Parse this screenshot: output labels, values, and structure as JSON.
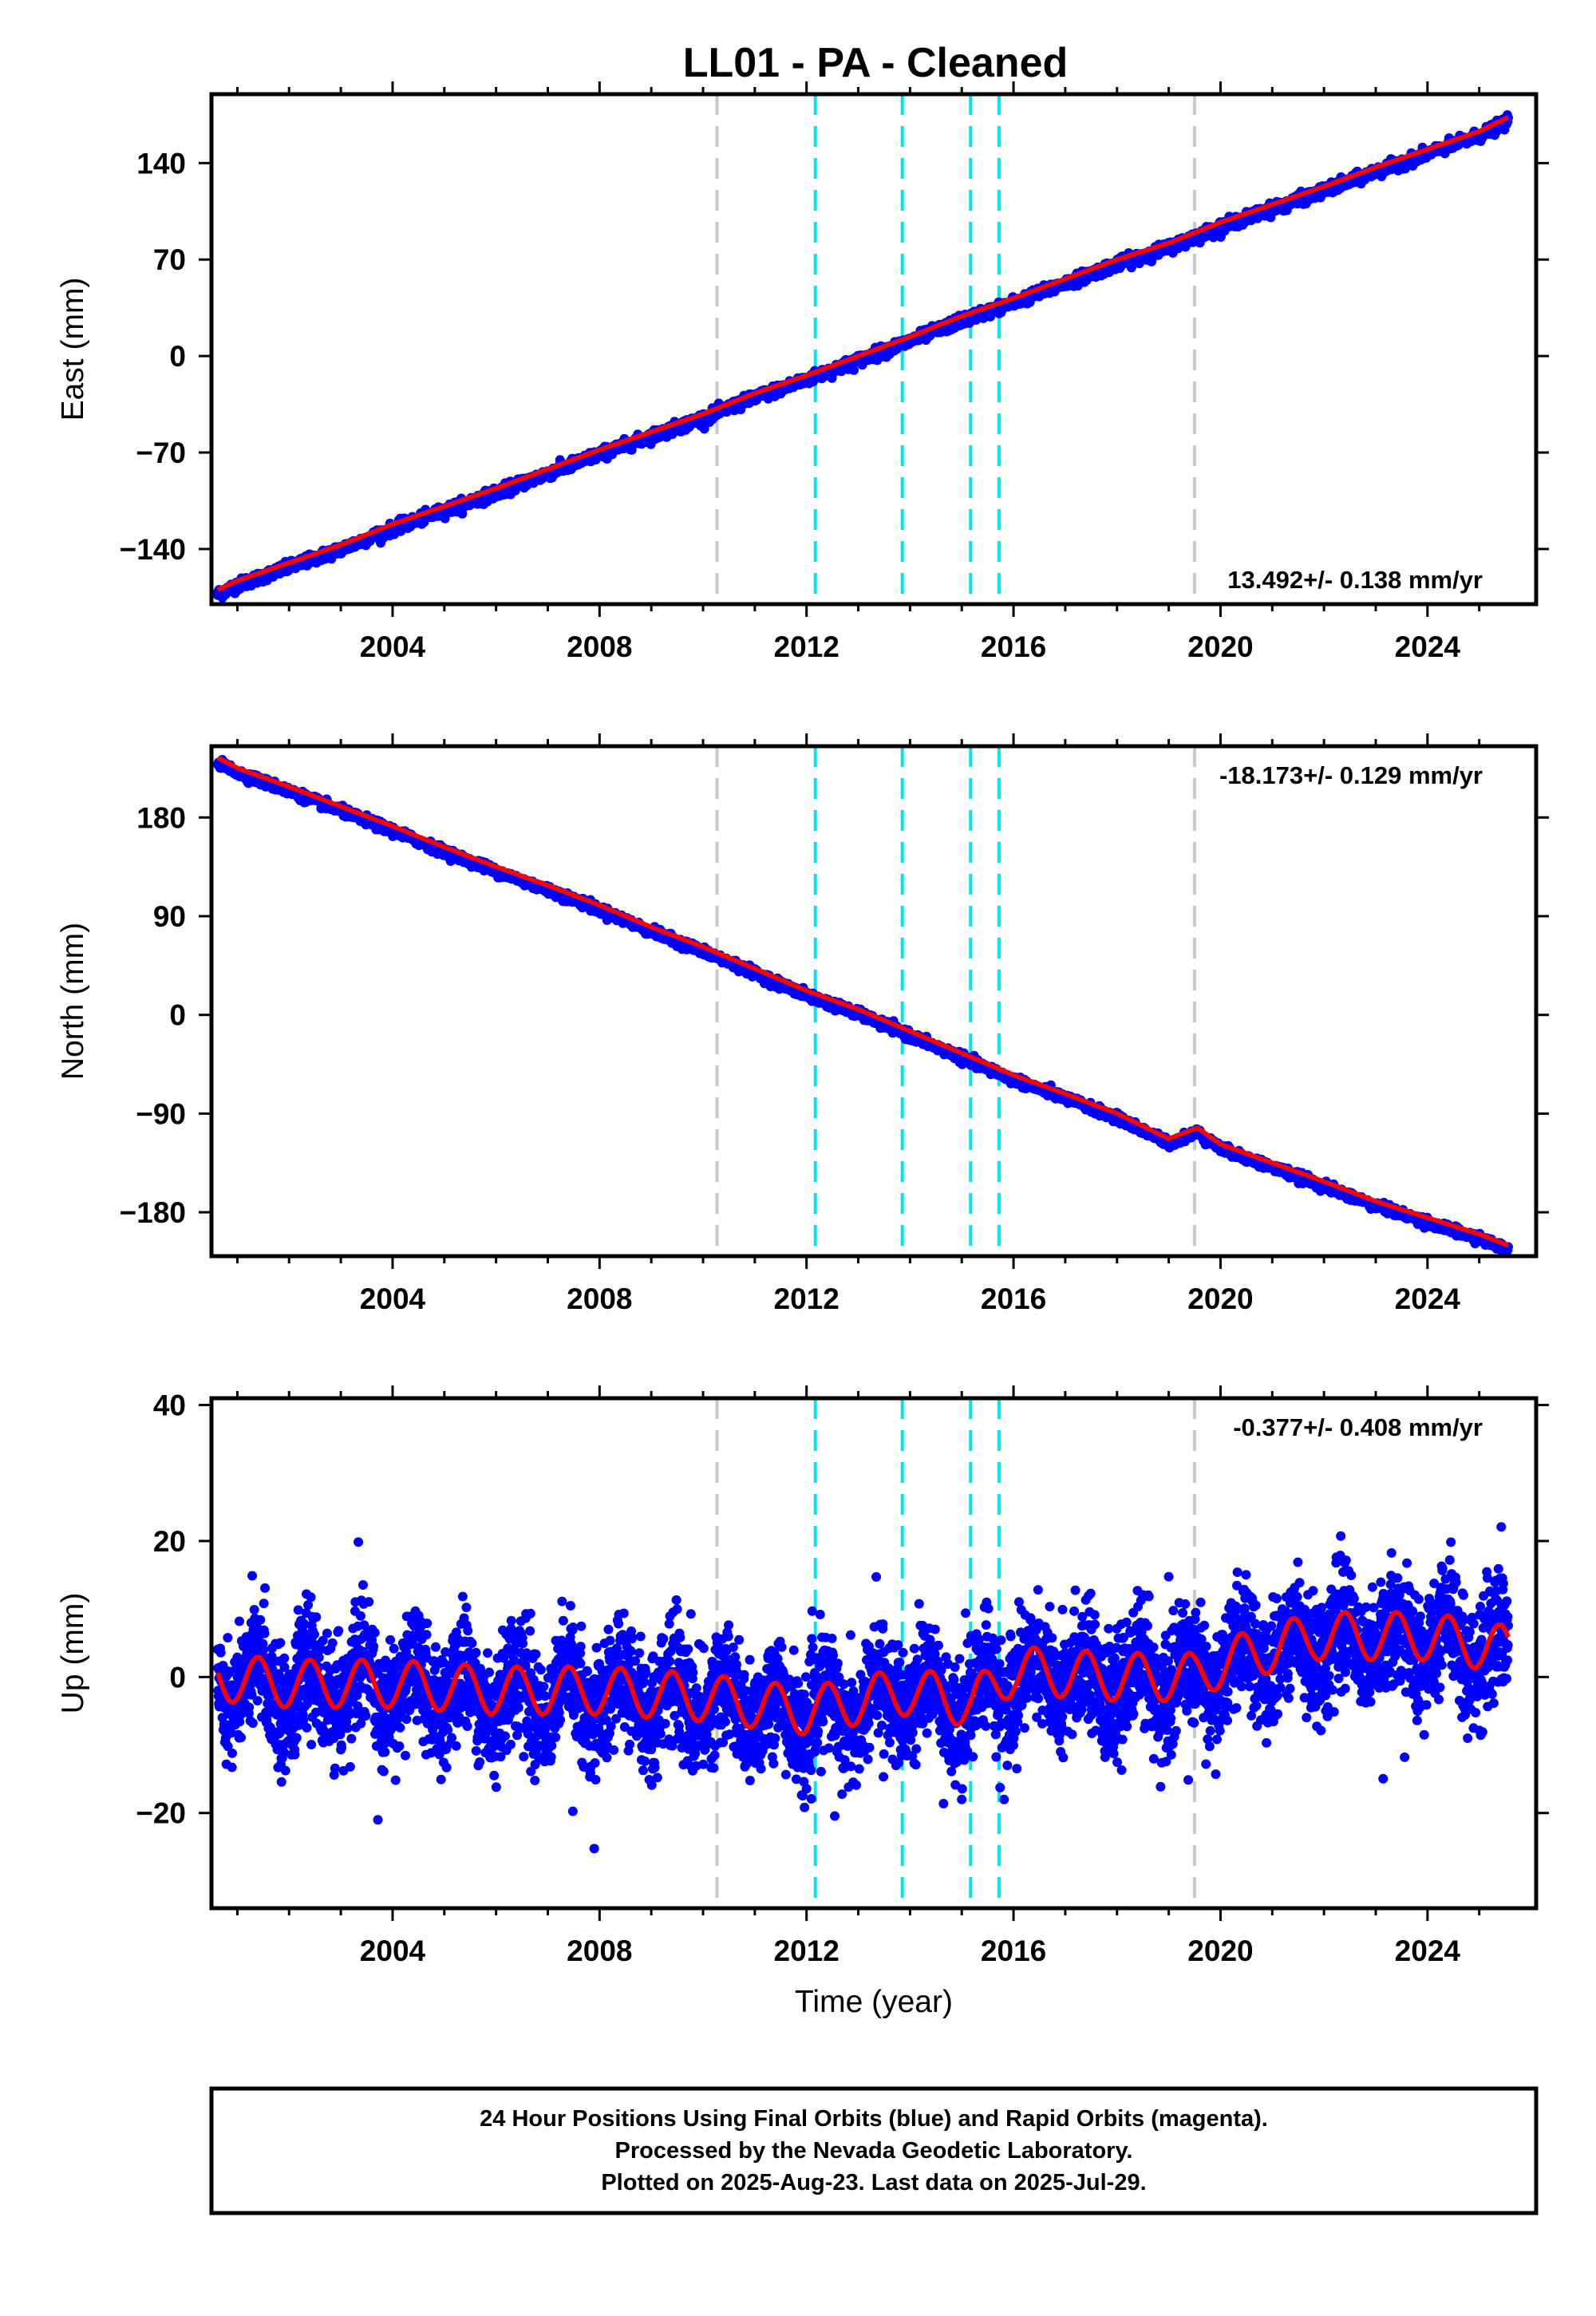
{
  "figure": {
    "title": "LL01  - PA - Cleaned",
    "footer_lines": [
      "24 Hour Positions Using Final Orbits (blue) and Rapid Orbits (magenta).",
      "Processed by the Nevada Geodetic Laboratory.",
      "Plotted on 2025-Aug-23. Last data on 2025-Jul-29."
    ],
    "colors": {
      "final_points": "#0000ff",
      "model_fit": "#ff0000",
      "gray_lines": "#c8c8c8",
      "cyan_lines": "#00e5ee"
    }
  },
  "chart_data": [
    {
      "type": "scatter",
      "panel": "east",
      "title": "",
      "xlabel": "",
      "ylabel": "East (mm)",
      "rate_label": "13.492+/- 0.138 mm/yr",
      "xlim": [
        2000.5,
        2026.1
      ],
      "ylim": [
        -180,
        190
      ],
      "x_ticks": [
        2004,
        2008,
        2012,
        2016,
        2020,
        2024
      ],
      "y_ticks": [
        -140,
        -70,
        0,
        70,
        140
      ],
      "gray_lines": [
        2010.27,
        2019.5
      ],
      "cyan_lines": [
        2012.17,
        2013.85,
        2015.17,
        2015.72
      ],
      "series": [
        {
          "x": [
            2000.6,
            2001.0,
            2002.0,
            2003.0,
            2004.0,
            2005.0,
            2006.0,
            2007.0,
            2008.0,
            2009.0,
            2010.0,
            2011.0,
            2012.0,
            2013.0,
            2014.0,
            2015.0,
            2016.0,
            2017.0,
            2018.0,
            2019.0,
            2020.0,
            2021.0,
            2022.0,
            2023.0,
            2024.0,
            2025.0,
            2025.55
          ],
          "values": [
            -170,
            -163,
            -150,
            -137,
            -122,
            -109,
            -96,
            -82,
            -68,
            -55,
            -42,
            -27,
            -14,
            0,
            14,
            29,
            42,
            56,
            70,
            82,
            97,
            110,
            123,
            137,
            150,
            163,
            173
          ]
        }
      ]
    },
    {
      "type": "scatter",
      "panel": "north",
      "title": "",
      "xlabel": "",
      "ylabel": "North (mm)",
      "rate_label": "-18.173+/- 0.129 mm/yr",
      "xlim": [
        2000.5,
        2026.1
      ],
      "ylim": [
        -220,
        245
      ],
      "x_ticks": [
        2004,
        2008,
        2012,
        2016,
        2020,
        2024
      ],
      "y_ticks": [
        -180,
        -90,
        0,
        90,
        180
      ],
      "gray_lines": [
        2010.27,
        2019.5
      ],
      "cyan_lines": [
        2012.17,
        2013.85,
        2015.17,
        2015.72
      ],
      "series": [
        {
          "x": [
            2000.6,
            2001.0,
            2002.0,
            2003.0,
            2004.0,
            2005.0,
            2006.0,
            2007.0,
            2008.0,
            2009.0,
            2010.0,
            2011.0,
            2012.0,
            2013.0,
            2014.0,
            2015.0,
            2016.0,
            2017.0,
            2018.0,
            2019.0,
            2019.55,
            2020.0,
            2021.0,
            2022.0,
            2023.0,
            2024.0,
            2025.0,
            2025.55
          ],
          "values": [
            235,
            225,
            208,
            190,
            172,
            153,
            135,
            118,
            100,
            80,
            62,
            42,
            22,
            5,
            -15,
            -35,
            -55,
            -72,
            -90,
            -113,
            -103,
            -118,
            -135,
            -152,
            -170,
            -185,
            -200,
            -210
          ]
        }
      ]
    },
    {
      "type": "scatter",
      "panel": "up",
      "title": "",
      "xlabel": "Time (year)",
      "ylabel": "Up (mm)",
      "rate_label": "-0.377+/- 0.408 mm/yr",
      "xlim": [
        2000.5,
        2026.1
      ],
      "ylim": [
        -34,
        41
      ],
      "x_ticks": [
        2004,
        2008,
        2012,
        2016,
        2020,
        2024
      ],
      "y_ticks": [
        -20,
        0,
        20,
        40
      ],
      "gray_lines": [
        2010.27,
        2019.5
      ],
      "cyan_lines": [
        2012.17,
        2013.85,
        2015.17,
        2015.72
      ],
      "series": [
        {
          "x": [
            2000.6,
            2002.0,
            2004.0,
            2006.0,
            2008.0,
            2010.0,
            2012.0,
            2014.0,
            2015.2,
            2016.0,
            2018.0,
            2019.5,
            2020.0,
            2021.8,
            2022.0,
            2024.0,
            2025.55
          ],
          "values": [
            0,
            -1,
            -1,
            -2,
            -2,
            -3,
            -5,
            -2,
            -4,
            1,
            0,
            0,
            2,
            6,
            6,
            6,
            4
          ],
          "seasonal_amplitude": 3.5
        }
      ]
    }
  ]
}
